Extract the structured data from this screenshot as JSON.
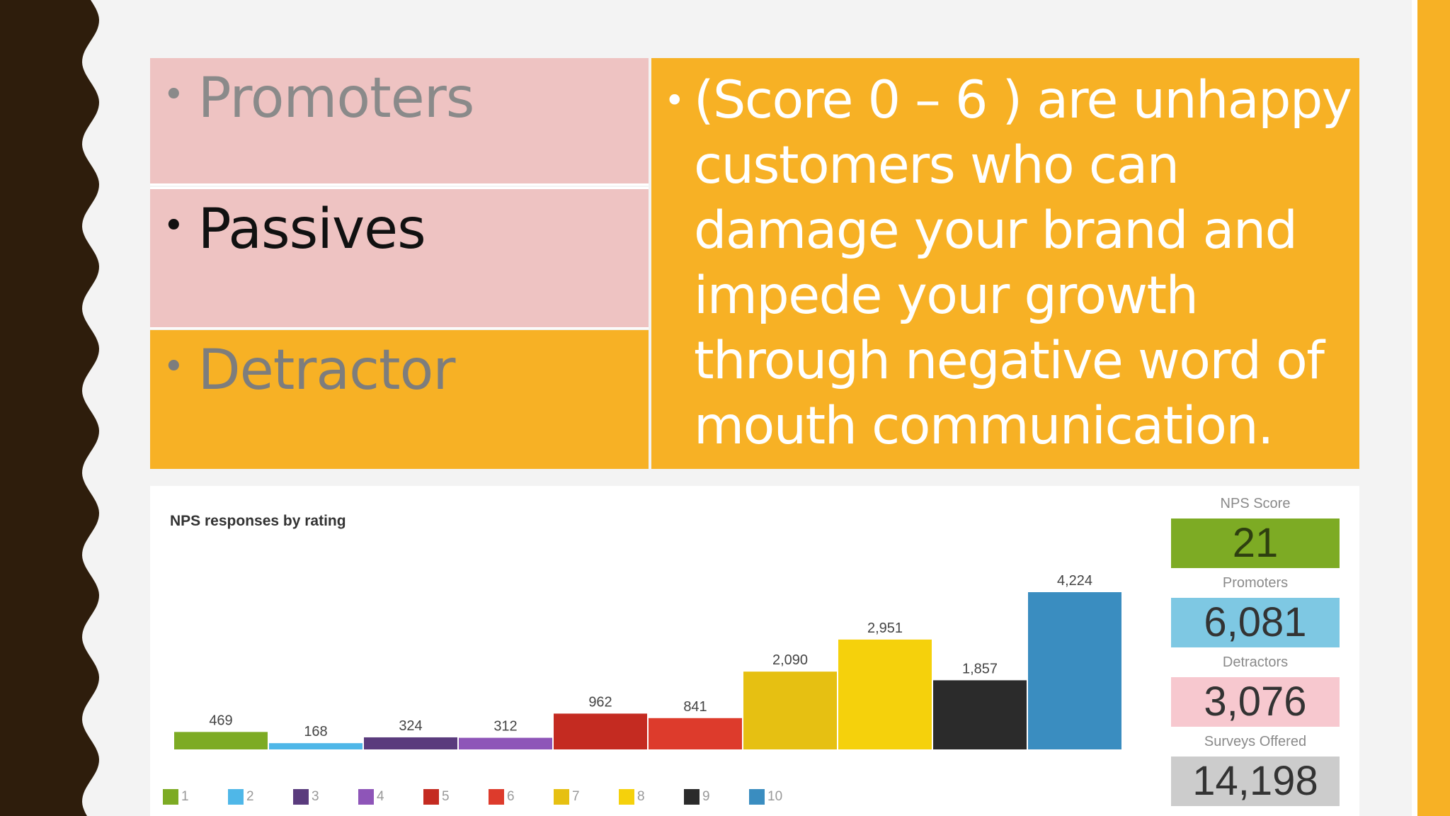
{
  "categories": {
    "promoters": "Promoters",
    "passives": "Passives",
    "detractor": "Detractor"
  },
  "description": "(Score 0 – 6 ) are unhappy customers who can damage your brand and impede your growth through negative word of mouth communication.",
  "bullet": "•",
  "colors": {
    "pink": "#eec3c2",
    "orange": "#f7b125",
    "dark_brown": "#2e1d0c"
  },
  "chart_data": {
    "type": "bar",
    "title": "NPS responses by rating",
    "categories": [
      "1",
      "2",
      "3",
      "4",
      "5",
      "6",
      "7",
      "8",
      "9",
      "10"
    ],
    "values": [
      469,
      168,
      324,
      312,
      962,
      841,
      2090,
      2951,
      1857,
      4224
    ],
    "value_labels": [
      "469",
      "168",
      "324",
      "312",
      "962",
      "841",
      "2,090",
      "2,951",
      "1,857",
      "4,224"
    ],
    "colors": [
      "#7dab24",
      "#4fb7e8",
      "#5a3b7d",
      "#8e55b8",
      "#c42b21",
      "#dd3b2c",
      "#e6c012",
      "#f5d10c",
      "#2b2b2b",
      "#3a8dc0"
    ],
    "legend_labels": [
      "1",
      "2",
      "3",
      "4",
      "5",
      "6",
      "7",
      "8",
      "9",
      "10"
    ],
    "legend_position": "bottom",
    "grid": false
  },
  "stats": {
    "nps_score": {
      "label": "NPS Score",
      "value": "21",
      "color": "#7dab24"
    },
    "promoters": {
      "label": "Promoters",
      "value": "6,081",
      "color": "#7ec8e3"
    },
    "detractors": {
      "label": "Detractors",
      "value": "3,076",
      "color": "#f7c8cf"
    },
    "surveys_offered": {
      "label": "Surveys Offered",
      "value": "14,198",
      "color": "#cccccc"
    }
  }
}
